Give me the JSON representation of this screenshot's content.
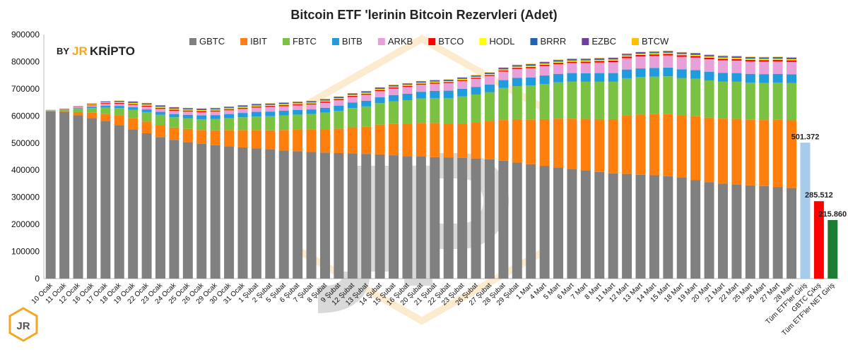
{
  "chart_data": {
    "type": "bar",
    "stacked": true,
    "title": "Bitcoin ETF 'lerinin Bitcoin Rezervleri (Adet)",
    "ylim": [
      0,
      900000
    ],
    "yticks": [
      "0",
      "100000",
      "200000",
      "300000",
      "400000",
      "500000",
      "600000",
      "700000",
      "800000",
      "900000"
    ],
    "legend_position": "top",
    "grid": false,
    "categories": [
      "10 Ocak",
      "11 Ocak",
      "12 Ocak",
      "16 Ocak",
      "17 Ocak",
      "18 Ocak",
      "19 Ocak",
      "22 Ocak",
      "23 Ocak",
      "24 Ocak",
      "25 Ocak",
      "26 Ocak",
      "29 Ocak",
      "30 Ocak",
      "31 Ocak",
      "1 Şubat",
      "2 Şubat",
      "5 Şubat",
      "6 Şubat",
      "7 Şubat",
      "8 Şubat",
      "9 Şubat",
      "12 Şubat",
      "13 Şubat",
      "14 Şubat",
      "15 Şubat",
      "16 Şubat",
      "20 Şubat",
      "21 Şubat",
      "22 Şubat",
      "23 Şubat",
      "26 Şubat",
      "27 Şubat",
      "28 Şubat",
      "29 Şubat",
      "1 Mart",
      "4 Mart",
      "5 Mart",
      "6 Mart",
      "7 Mart",
      "8 Mart",
      "11 Mart",
      "12 Mart",
      "13 Mart",
      "14 Mart",
      "15 Mart",
      "18 Mart",
      "19 Mart",
      "20 Mart",
      "21 Mart",
      "22 Mart",
      "25 Mart",
      "26 Mart",
      "27 Mart",
      "28 Mart"
    ],
    "series": [
      {
        "name": "GBTC",
        "color": "#808080",
        "values": [
          617000,
          615000,
          603000,
          592000,
          580000,
          566000,
          551000,
          536000,
          522000,
          512000,
          502000,
          497000,
          492000,
          488000,
          484000,
          480000,
          477000,
          472000,
          470000,
          467000,
          465000,
          463000,
          462000,
          460000,
          458000,
          455000,
          452000,
          450000,
          448000,
          447000,
          445000,
          443000,
          440000,
          435000,
          428000,
          422000,
          416000,
          410000,
          405000,
          399000,
          393000,
          388000,
          386000,
          383000,
          381000,
          378000,
          372000,
          364000,
          356000,
          350000,
          347000,
          344000,
          341000,
          338000,
          334000
        ]
      },
      {
        "name": "IBIT",
        "color": "#FF7F0E",
        "values": [
          1000,
          3000,
          11000,
          20000,
          28000,
          35000,
          40000,
          43000,
          45000,
          45000,
          50000,
          51000,
          55000,
          60000,
          64000,
          68000,
          70000,
          76000,
          79000,
          82000,
          85000,
          90000,
          96000,
          100000,
          110000,
          115000,
          120000,
          124000,
          126000,
          124000,
          127000,
          132000,
          140000,
          150000,
          160000,
          165000,
          172000,
          180000,
          185000,
          190000,
          195000,
          200000,
          215000,
          222000,
          226000,
          230000,
          230000,
          236000,
          238000,
          240000,
          242000,
          242000,
          244000,
          248000,
          250000
        ]
      },
      {
        "name": "FBTC",
        "color": "#7CC242",
        "values": [
          2000,
          5000,
          12000,
          17000,
          23000,
          28000,
          32000,
          35000,
          37000,
          38000,
          39000,
          40000,
          42000,
          44000,
          47000,
          50000,
          52000,
          54000,
          56000,
          58000,
          62000,
          66000,
          71000,
          75000,
          79000,
          84000,
          86000,
          90000,
          92000,
          95000,
          100000,
          104000,
          108000,
          118000,
          122000,
          125000,
          130000,
          134000,
          137000,
          137000,
          138000,
          138000,
          138000,
          138000,
          138000,
          138000,
          138000,
          137000,
          137000,
          137000,
          137000,
          137000,
          137000,
          137000,
          137000
        ]
      },
      {
        "name": "BITB",
        "color": "#1F9BDE",
        "values": [
          500,
          1000,
          3000,
          5000,
          7000,
          8000,
          9000,
          10000,
          11000,
          12000,
          13000,
          14000,
          14000,
          15000,
          16000,
          17000,
          17000,
          17000,
          17000,
          17000,
          18000,
          19000,
          20000,
          21000,
          22000,
          23000,
          24000,
          25000,
          26000,
          27000,
          28000,
          28000,
          28000,
          29000,
          30000,
          30000,
          31000,
          31000,
          31000,
          31000,
          32000,
          32000,
          32000,
          32000,
          32000,
          32000,
          32000,
          32000,
          32000,
          32000,
          32000,
          32000,
          32000,
          32000,
          32000
        ]
      },
      {
        "name": "ARKB",
        "color": "#E8A0D8",
        "values": [
          500,
          1000,
          3000,
          5000,
          7000,
          8000,
          9000,
          10000,
          11000,
          12000,
          12000,
          12000,
          13000,
          14000,
          15000,
          16000,
          17000,
          17000,
          17000,
          18000,
          19000,
          20000,
          21000,
          22000,
          23000,
          24000,
          25000,
          26000,
          27000,
          28000,
          29000,
          30000,
          31000,
          32000,
          33000,
          34000,
          35000,
          36000,
          37000,
          38000,
          39000,
          40000,
          42000,
          44000,
          44000,
          45000,
          46000,
          46000,
          46000,
          46000,
          46000,
          46000,
          46000,
          46000,
          46000
        ]
      },
      {
        "name": "BTCO",
        "color": "#FF0000",
        "values": [
          300,
          500,
          1000,
          2000,
          2500,
          3000,
          3500,
          4000,
          4000,
          4000,
          4000,
          4000,
          4000,
          4000,
          4000,
          4000,
          4000,
          4000,
          4000,
          4000,
          4000,
          4000,
          4000,
          4000,
          4000,
          4000,
          4000,
          4000,
          4000,
          4000,
          4000,
          4000,
          4000,
          4000,
          4500,
          5000,
          5000,
          5000,
          5000,
          5500,
          5500,
          6000,
          6000,
          6000,
          6000,
          6000,
          6000,
          6000,
          6000,
          6000,
          6000,
          6000,
          6000,
          6000,
          6000
        ]
      },
      {
        "name": "HODL",
        "color": "#FFFF00",
        "values": [
          300,
          500,
          1000,
          2000,
          2500,
          3000,
          3500,
          3500,
          3500,
          3500,
          3500,
          3500,
          3500,
          3500,
          3500,
          3500,
          3500,
          3500,
          3500,
          3500,
          3500,
          3500,
          3500,
          3500,
          3500,
          3500,
          3500,
          3500,
          3500,
          3500,
          3500,
          3500,
          3500,
          3500,
          4000,
          4000,
          4000,
          4000,
          4000,
          4000,
          4000,
          4000,
          4000,
          4000,
          4000,
          4000,
          4000,
          4000,
          4000,
          4000,
          4000,
          4000,
          4000,
          4000,
          4000
        ]
      },
      {
        "name": "BRRR",
        "color": "#1F63B5",
        "values": [
          300,
          500,
          1000,
          1500,
          2000,
          2500,
          3000,
          3000,
          3000,
          3000,
          3000,
          3000,
          3000,
          3000,
          3000,
          3000,
          3000,
          3000,
          3000,
          3000,
          3000,
          3000,
          3000,
          3000,
          3000,
          3000,
          3000,
          3000,
          3000,
          3000,
          3000,
          3000,
          3000,
          3500,
          3500,
          3500,
          3500,
          3500,
          3500,
          3500,
          3500,
          3500,
          3500,
          3500,
          3500,
          3500,
          3500,
          3500,
          3500,
          3500,
          3500,
          3500,
          3500,
          3500,
          3500
        ]
      },
      {
        "name": "EZBC",
        "color": "#6F3FA0",
        "values": [
          200,
          400,
          800,
          1200,
          1500,
          1800,
          2000,
          2000,
          2200,
          2200,
          2200,
          2200,
          2200,
          2200,
          2200,
          2200,
          2200,
          2200,
          2200,
          2200,
          2200,
          2200,
          2200,
          2200,
          2200,
          2200,
          2200,
          2200,
          2200,
          2200,
          2200,
          2200,
          2200,
          2500,
          2500,
          2500,
          2500,
          2500,
          2500,
          2500,
          2500,
          2500,
          2500,
          2500,
          2500,
          2500,
          2500,
          2500,
          2500,
          2500,
          2500,
          2500,
          2500,
          2500,
          2500
        ]
      },
      {
        "name": "BTCW",
        "color": "#FFC000",
        "values": [
          200,
          400,
          600,
          800,
          1000,
          1200,
          1200,
          1200,
          1200,
          1200,
          1200,
          1200,
          1200,
          1200,
          1200,
          1200,
          1200,
          1200,
          1200,
          1200,
          1200,
          1200,
          1200,
          1200,
          1200,
          1200,
          1200,
          1200,
          1200,
          1200,
          1200,
          1200,
          1200,
          1500,
          1500,
          1500,
          1500,
          1500,
          1500,
          1500,
          1500,
          1500,
          1500,
          1500,
          1500,
          1500,
          1500,
          1500,
          1500,
          1500,
          1500,
          1500,
          1500,
          1500,
          1500
        ]
      }
    ],
    "summary_bars": [
      {
        "category": "Tüm ETF'ler Giriş",
        "value": 501372,
        "label": "501.372",
        "color": "#A9CBEA"
      },
      {
        "category": "GBTC Çıkış",
        "value": 285512,
        "label": "285.512",
        "color": "#FF0000"
      },
      {
        "category": "Tüm ETF'ler NET Giriş",
        "value": 215860,
        "label": "215.860",
        "color": "#1E7B32"
      }
    ]
  },
  "brand": {
    "by": "BY",
    "jr": "JR",
    "kripto": "KRİPTO",
    "badge": "JR",
    "color_orange": "#F5A623",
    "color_dark": "#222222"
  }
}
